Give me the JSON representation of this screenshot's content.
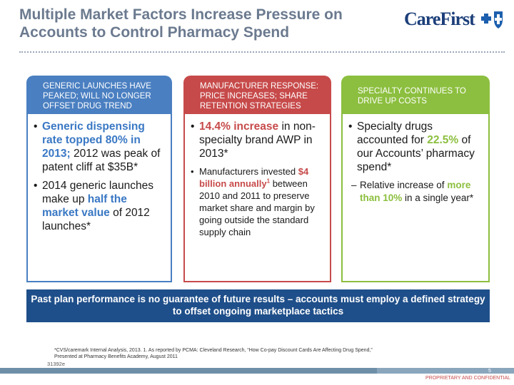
{
  "title": "Multiple Market Factors Increase Pressure on Accounts to Control Pharmacy Spend",
  "logo": {
    "text": "CareFirst"
  },
  "panels": [
    {
      "header": "GENERIC LAUNCHES HAVE PEAKED; WILL NO LONGER OFFSET DRUG TREND",
      "color": "#4a7fc1",
      "b1_hl": "Generic dispensing rate topped 80% in 2013;",
      "b1_rest": " 2012 was peak of patent cliff at $35B*",
      "b2_pre": "2014 generic launches make up ",
      "b2_hl": "half the market value",
      "b2_rest": " of 2012 launches*"
    },
    {
      "header": "MANUFACTURER RESPONSE: PRICE INCREASES; SHARE RETENTION STRATEGIES",
      "color": "#c74a4a",
      "b1_hl": "14.4% increase",
      "b1_rest": " in non-specialty brand AWP in 2013*",
      "b2_pre": "Manufacturers invested ",
      "b2_hl": "$4 billion annually",
      "b2_sup": "1",
      "b2_rest": " between 2010 and 2011 to preserve market share and margin by going outside the standard supply chain"
    },
    {
      "header": "SPECIALTY CONTINUES TO DRIVE UP COSTS",
      "color": "#8cbf3f",
      "b1_pre": "Specialty drugs accounted for ",
      "b1_hl": "22.5%",
      "b1_rest": " of our Accounts’ pharmacy spend*",
      "sub_pre": "Relative increase of ",
      "sub_hl": "more than 10%",
      "sub_rest": " in a single year*"
    }
  ],
  "banner": "Past plan performance is no guarantee of future results – accounts must employ a defined strategy to offset ongoing marketplace tactics",
  "footnote_1": "*CVS/caremark Internal Analysis, 2013. 1. As reported by PCMA: Cleveland Research, “How Co-pay Discount Cards Are Affecting Drug Spend,”",
  "footnote_2": "Presented at Pharmacy Benefits Academy, August 2011",
  "code": "31392e",
  "page_number": "5",
  "confidential": "PROPRIETARY AND CONFIDENTIAL"
}
